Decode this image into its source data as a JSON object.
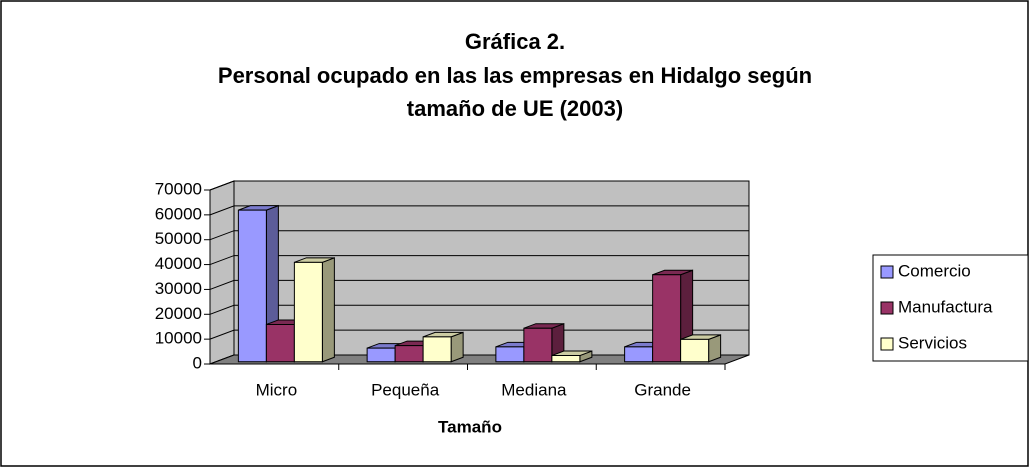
{
  "chart_data": {
    "type": "bar3d",
    "title": [
      "Gráfica 2.",
      "Personal ocupado en las las empresas en Hidalgo según",
      "tamaño de UE (2003)"
    ],
    "x_label": "Tamaño",
    "categories": [
      "Micro",
      "Pequeña",
      "Mediana",
      "Grande"
    ],
    "series": [
      {
        "name": "Comercio",
        "color": "#9999ff",
        "values": [
          61000,
          5500,
          6000,
          6000
        ]
      },
      {
        "name": "Manufactura",
        "color": "#993366",
        "values": [
          15000,
          6500,
          13500,
          35000
        ]
      },
      {
        "name": "Servicios",
        "color": "#ffffcc",
        "values": [
          40000,
          10000,
          2500,
          9000
        ]
      }
    ],
    "ylim": [
      0,
      70000
    ],
    "yticks": [
      0,
      10000,
      20000,
      30000,
      40000,
      50000,
      60000,
      70000
    ],
    "grid": true,
    "legend": "right"
  }
}
